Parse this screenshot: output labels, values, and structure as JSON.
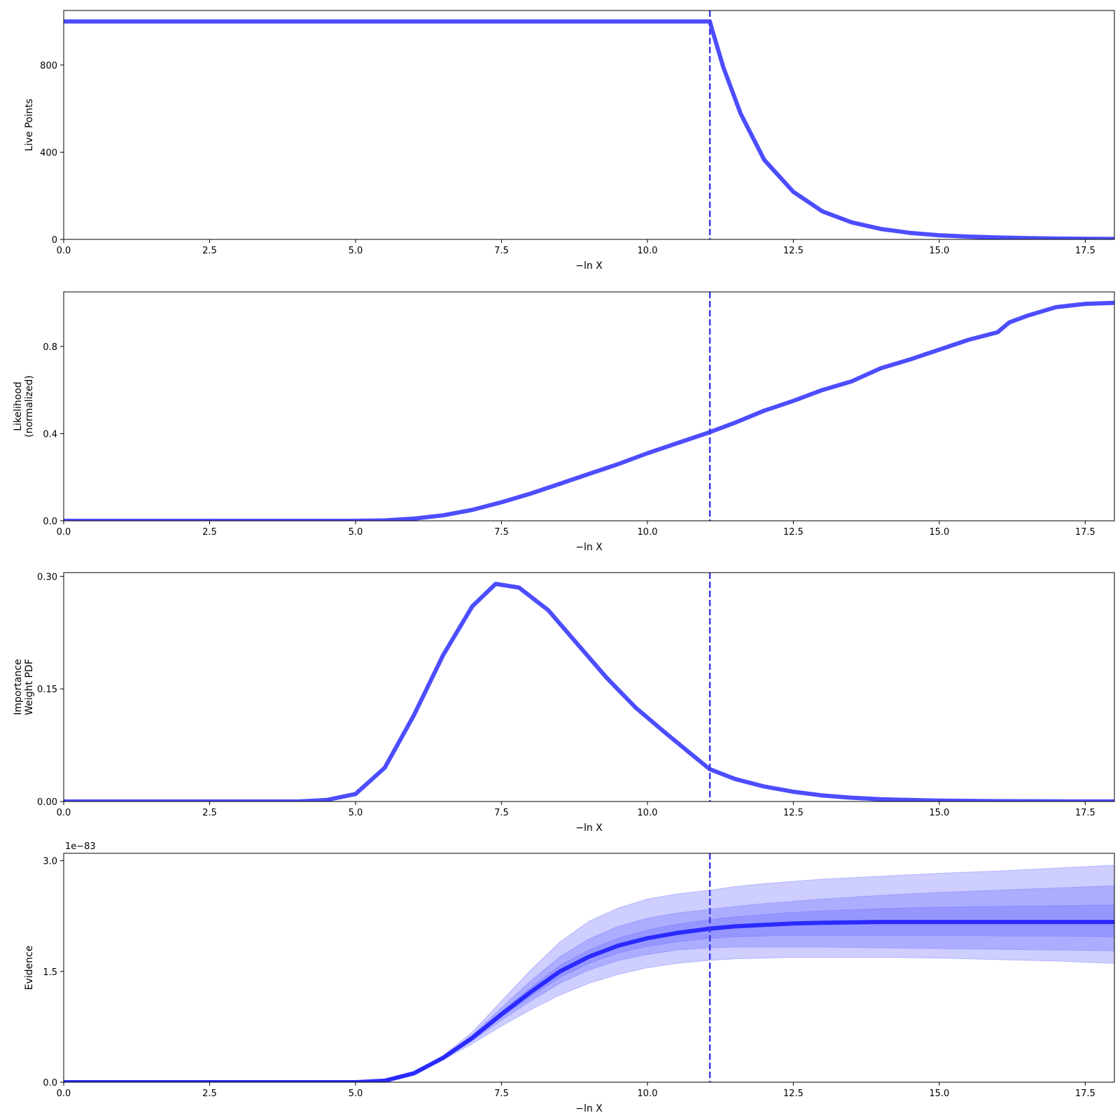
{
  "colors": {
    "line": "#4d4dff",
    "evidence_line": "#2a2aff",
    "band": "#6666ff",
    "marker": "#3b3be6"
  },
  "marker_x": 11.07,
  "chart_data": [
    {
      "type": "line",
      "xlabel": "−ln X",
      "ylabel": "Live Points",
      "xlim": [
        0,
        18
      ],
      "ylim": [
        0,
        1050
      ],
      "xticks": [
        "0.0",
        "2.5",
        "5.0",
        "7.5",
        "10.0",
        "12.5",
        "15.0",
        "17.5"
      ],
      "yticks": [
        "0",
        "400",
        "800"
      ],
      "series": [
        {
          "x": [
            0,
            11.07,
            11.1,
            11.3,
            11.6,
            12.0,
            12.5,
            13.0,
            13.5,
            14.0,
            14.5,
            15.0,
            15.5,
            16.0,
            16.5,
            17.0,
            17.5,
            18.0
          ],
          "values": [
            1000,
            1000,
            970,
            790,
            575,
            365,
            218,
            128,
            78,
            48,
            30,
            19,
            13,
            9,
            6,
            4,
            3,
            2
          ]
        }
      ]
    },
    {
      "type": "line",
      "xlabel": "−ln X",
      "ylabel": [
        "Likelihood",
        "(normalized)"
      ],
      "xlim": [
        0,
        18
      ],
      "ylim": [
        0,
        1.05
      ],
      "xticks": [
        "0.0",
        "2.5",
        "5.0",
        "7.5",
        "10.0",
        "12.5",
        "15.0",
        "17.5"
      ],
      "yticks": [
        "0.0",
        "0.4",
        "0.8"
      ],
      "series": [
        {
          "x": [
            0,
            5.0,
            5.5,
            6.0,
            6.5,
            7.0,
            7.5,
            8.0,
            8.5,
            9.0,
            9.5,
            10.0,
            10.5,
            11.0,
            11.5,
            12.0,
            12.5,
            13.0,
            13.5,
            14.0,
            14.5,
            15.0,
            15.5,
            16.0,
            16.2,
            16.5,
            17.0,
            17.5,
            18.0
          ],
          "values": [
            0,
            0,
            0.002,
            0.01,
            0.025,
            0.05,
            0.085,
            0.125,
            0.17,
            0.215,
            0.26,
            0.31,
            0.355,
            0.4,
            0.45,
            0.505,
            0.55,
            0.6,
            0.64,
            0.7,
            0.74,
            0.785,
            0.83,
            0.865,
            0.91,
            0.94,
            0.98,
            0.995,
            1.0
          ]
        }
      ]
    },
    {
      "type": "line",
      "xlabel": "−ln X",
      "ylabel": [
        "Importance",
        "Weight PDF"
      ],
      "xlim": [
        0,
        18
      ],
      "ylim": [
        0,
        0.305
      ],
      "xticks": [
        "0.0",
        "2.5",
        "5.0",
        "7.5",
        "10.0",
        "12.5",
        "15.0",
        "17.5"
      ],
      "yticks": [
        "0.00",
        "0.15",
        "0.30"
      ],
      "series": [
        {
          "x": [
            0,
            4.0,
            4.5,
            5.0,
            5.5,
            6.0,
            6.5,
            7.0,
            7.4,
            7.8,
            8.3,
            8.8,
            9.3,
            9.8,
            10.3,
            10.8,
            11.07,
            11.5,
            12.0,
            12.5,
            13.0,
            13.5,
            14.0,
            15.0,
            16.0,
            17.0,
            18.0
          ],
          "values": [
            0,
            0,
            0.002,
            0.01,
            0.045,
            0.115,
            0.195,
            0.26,
            0.29,
            0.285,
            0.255,
            0.21,
            0.165,
            0.125,
            0.092,
            0.06,
            0.043,
            0.03,
            0.02,
            0.013,
            0.008,
            0.005,
            0.003,
            0.0012,
            0.0005,
            0.0002,
            0.0001
          ]
        }
      ]
    },
    {
      "type": "area",
      "xlabel": "−ln X",
      "ylabel": "Evidence",
      "offset_label": "1e−83",
      "xlim": [
        0,
        18
      ],
      "ylim": [
        0,
        3.1
      ],
      "xticks": [
        "0.0",
        "2.5",
        "5.0",
        "7.5",
        "10.0",
        "12.5",
        "15.0",
        "17.5"
      ],
      "yticks": [
        "0.0",
        "1.5",
        "3.0"
      ],
      "x": [
        0,
        5.0,
        5.5,
        6.0,
        6.5,
        7.0,
        7.5,
        8.0,
        8.5,
        9.0,
        9.5,
        10.0,
        10.5,
        11.07,
        11.5,
        12.0,
        12.5,
        13.0,
        14.0,
        15.0,
        16.0,
        17.0,
        18.0
      ],
      "median": [
        0,
        0,
        0.02,
        0.12,
        0.33,
        0.6,
        0.92,
        1.22,
        1.5,
        1.7,
        1.85,
        1.95,
        2.02,
        2.08,
        2.11,
        2.13,
        2.15,
        2.16,
        2.17,
        2.17,
        2.17,
        2.17,
        2.17
      ],
      "bands": [
        {
          "lower": [
            0,
            0,
            0.02,
            0.11,
            0.3,
            0.52,
            0.76,
            0.98,
            1.18,
            1.34,
            1.46,
            1.55,
            1.61,
            1.65,
            1.67,
            1.68,
            1.69,
            1.69,
            1.69,
            1.68,
            1.66,
            1.64,
            1.61
          ],
          "upper": [
            0,
            0,
            0.02,
            0.13,
            0.36,
            0.68,
            1.1,
            1.52,
            1.9,
            2.18,
            2.36,
            2.48,
            2.55,
            2.6,
            2.65,
            2.69,
            2.72,
            2.75,
            2.79,
            2.83,
            2.86,
            2.9,
            2.94
          ]
        },
        {
          "lower": [
            0,
            0,
            0.02,
            0.115,
            0.315,
            0.56,
            0.84,
            1.1,
            1.34,
            1.52,
            1.65,
            1.73,
            1.79,
            1.82,
            1.83,
            1.83,
            1.83,
            1.83,
            1.82,
            1.81,
            1.8,
            1.79,
            1.78
          ],
          "upper": [
            0,
            0,
            0.02,
            0.125,
            0.345,
            0.64,
            1.01,
            1.37,
            1.7,
            1.94,
            2.11,
            2.22,
            2.29,
            2.34,
            2.38,
            2.42,
            2.45,
            2.48,
            2.53,
            2.57,
            2.6,
            2.63,
            2.66
          ]
        },
        {
          "lower": [
            0,
            0,
            0.02,
            0.118,
            0.323,
            0.58,
            0.88,
            1.16,
            1.42,
            1.61,
            1.75,
            1.84,
            1.9,
            1.95,
            1.97,
            1.98,
            1.99,
            1.99,
            1.99,
            1.99,
            1.98,
            1.98,
            1.97
          ],
          "upper": [
            0,
            0,
            0.02,
            0.122,
            0.338,
            0.62,
            0.96,
            1.28,
            1.58,
            1.79,
            1.95,
            2.06,
            2.14,
            2.2,
            2.24,
            2.27,
            2.3,
            2.32,
            2.35,
            2.37,
            2.38,
            2.39,
            2.4
          ]
        }
      ]
    }
  ]
}
